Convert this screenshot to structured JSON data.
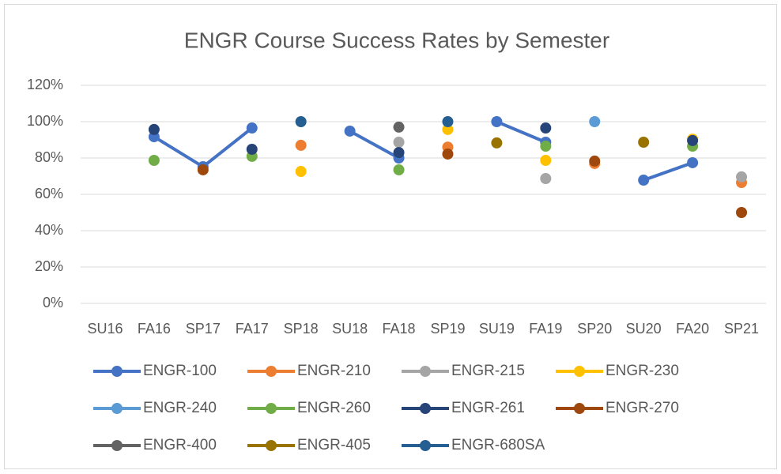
{
  "chart_data": {
    "type": "line",
    "title": "ENGR Course Success Rates by Semester",
    "categories": [
      "SU16",
      "FA16",
      "SP17",
      "FA17",
      "SP18",
      "SU18",
      "FA18",
      "SP19",
      "SU19",
      "FA19",
      "SP20",
      "SU20",
      "FA20",
      "SP21"
    ],
    "ylim": [
      0,
      120
    ],
    "yticks": [
      {
        "value": 0,
        "label": "0%"
      },
      {
        "value": 20,
        "label": "20%"
      },
      {
        "value": 40,
        "label": "40%"
      },
      {
        "value": 60,
        "label": "60%"
      },
      {
        "value": 80,
        "label": "80%"
      },
      {
        "value": 100,
        "label": "100%"
      },
      {
        "value": 120,
        "label": "120%"
      }
    ],
    "grid": true,
    "legend": "bottom",
    "series": [
      {
        "name": "ENGR-100",
        "color": "#4472c4",
        "values": [
          null,
          91.7,
          75.2,
          96.5,
          null,
          94.8,
          80,
          null,
          100,
          88.7,
          null,
          67.8,
          77.4,
          null
        ]
      },
      {
        "name": "ENGR-210",
        "color": "#ed7d31",
        "values": [
          null,
          null,
          null,
          null,
          87,
          null,
          null,
          86,
          null,
          null,
          77,
          null,
          null,
          66.5
        ]
      },
      {
        "name": "ENGR-215",
        "color": "#a5a5a5",
        "values": [
          null,
          null,
          null,
          null,
          null,
          null,
          88.7,
          null,
          null,
          68.7,
          null,
          null,
          null,
          69.6
        ]
      },
      {
        "name": "ENGR-230",
        "color": "#ffc000",
        "values": [
          null,
          null,
          null,
          null,
          72.6,
          null,
          null,
          95.7,
          null,
          78.7,
          null,
          null,
          90.4,
          null
        ]
      },
      {
        "name": "ENGR-240",
        "color": "#5b9bd5",
        "values": [
          null,
          null,
          null,
          null,
          null,
          null,
          null,
          null,
          null,
          null,
          100,
          null,
          null,
          null
        ]
      },
      {
        "name": "ENGR-260",
        "color": "#70ad47",
        "values": [
          null,
          78.7,
          null,
          80.9,
          null,
          null,
          73.5,
          null,
          null,
          86.5,
          null,
          null,
          86.5,
          null
        ]
      },
      {
        "name": "ENGR-261",
        "color": "#264478",
        "values": [
          null,
          95.7,
          null,
          84.8,
          null,
          null,
          83,
          null,
          null,
          96.5,
          null,
          null,
          89.6,
          null
        ]
      },
      {
        "name": "ENGR-270",
        "color": "#9e480e",
        "values": [
          null,
          null,
          73.5,
          null,
          null,
          null,
          null,
          82.2,
          null,
          null,
          78.3,
          null,
          null,
          50
        ]
      },
      {
        "name": "ENGR-400",
        "color": "#636363",
        "values": [
          null,
          null,
          null,
          null,
          null,
          null,
          97,
          null,
          null,
          null,
          null,
          null,
          null,
          null
        ]
      },
      {
        "name": "ENGR-405",
        "color": "#997300",
        "values": [
          null,
          null,
          null,
          null,
          null,
          null,
          null,
          null,
          88.3,
          null,
          null,
          88.7,
          null,
          null
        ]
      },
      {
        "name": "ENGR-680SA",
        "color": "#255e91",
        "values": [
          null,
          null,
          null,
          null,
          100,
          null,
          null,
          100,
          null,
          null,
          null,
          null,
          null,
          null
        ]
      }
    ]
  }
}
